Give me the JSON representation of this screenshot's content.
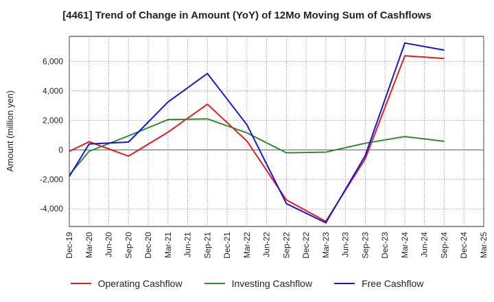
{
  "chart_data": {
    "type": "line",
    "title": "[4461]  Trend of Change in Amount (YoY) of 12Mo Moving Sum of Cashflows",
    "xlabel": "",
    "ylabel": "Amount (million yen)",
    "ylim": [
      -5200,
      7700
    ],
    "yticks": [
      -4000,
      -2000,
      0,
      2000,
      4000,
      6000
    ],
    "ytick_labels": [
      "-4,000",
      "-2,000",
      "0",
      "2,000",
      "4,000",
      "6,000"
    ],
    "categories": [
      "Dec-19",
      "Mar-20",
      "Jun-20",
      "Sep-20",
      "Dec-20",
      "Mar-21",
      "Jun-21",
      "Sep-21",
      "Dec-21",
      "Mar-22",
      "Jun-22",
      "Sep-22",
      "Dec-22",
      "Mar-23",
      "Jun-23",
      "Sep-23",
      "Dec-23",
      "Mar-24",
      "Jun-24",
      "Sep-24",
      "Dec-24",
      "Mar-25"
    ],
    "series": [
      {
        "name": "Operating Cashflow",
        "color": "#e41a1c",
        "values": [
          -100,
          550,
          null,
          -420,
          null,
          1200,
          null,
          3100,
          null,
          600,
          null,
          -3400,
          null,
          -4850,
          null,
          -600,
          null,
          6380,
          null,
          6200,
          null,
          null
        ]
      },
      {
        "name": "Investing Cashflow",
        "color": "#2e8b2e",
        "values": [
          -1700,
          -100,
          null,
          950,
          null,
          2050,
          null,
          2100,
          null,
          1150,
          null,
          -200,
          null,
          -150,
          null,
          450,
          null,
          900,
          null,
          580,
          null,
          null
        ]
      },
      {
        "name": "Free Cashflow",
        "color": "#1515d4",
        "values": [
          -1800,
          400,
          null,
          530,
          null,
          3250,
          null,
          5180,
          null,
          1700,
          null,
          -3650,
          null,
          -4950,
          null,
          -380,
          null,
          7250,
          null,
          6770,
          null,
          null
        ]
      }
    ],
    "grid": true,
    "legend_position": "bottom"
  }
}
